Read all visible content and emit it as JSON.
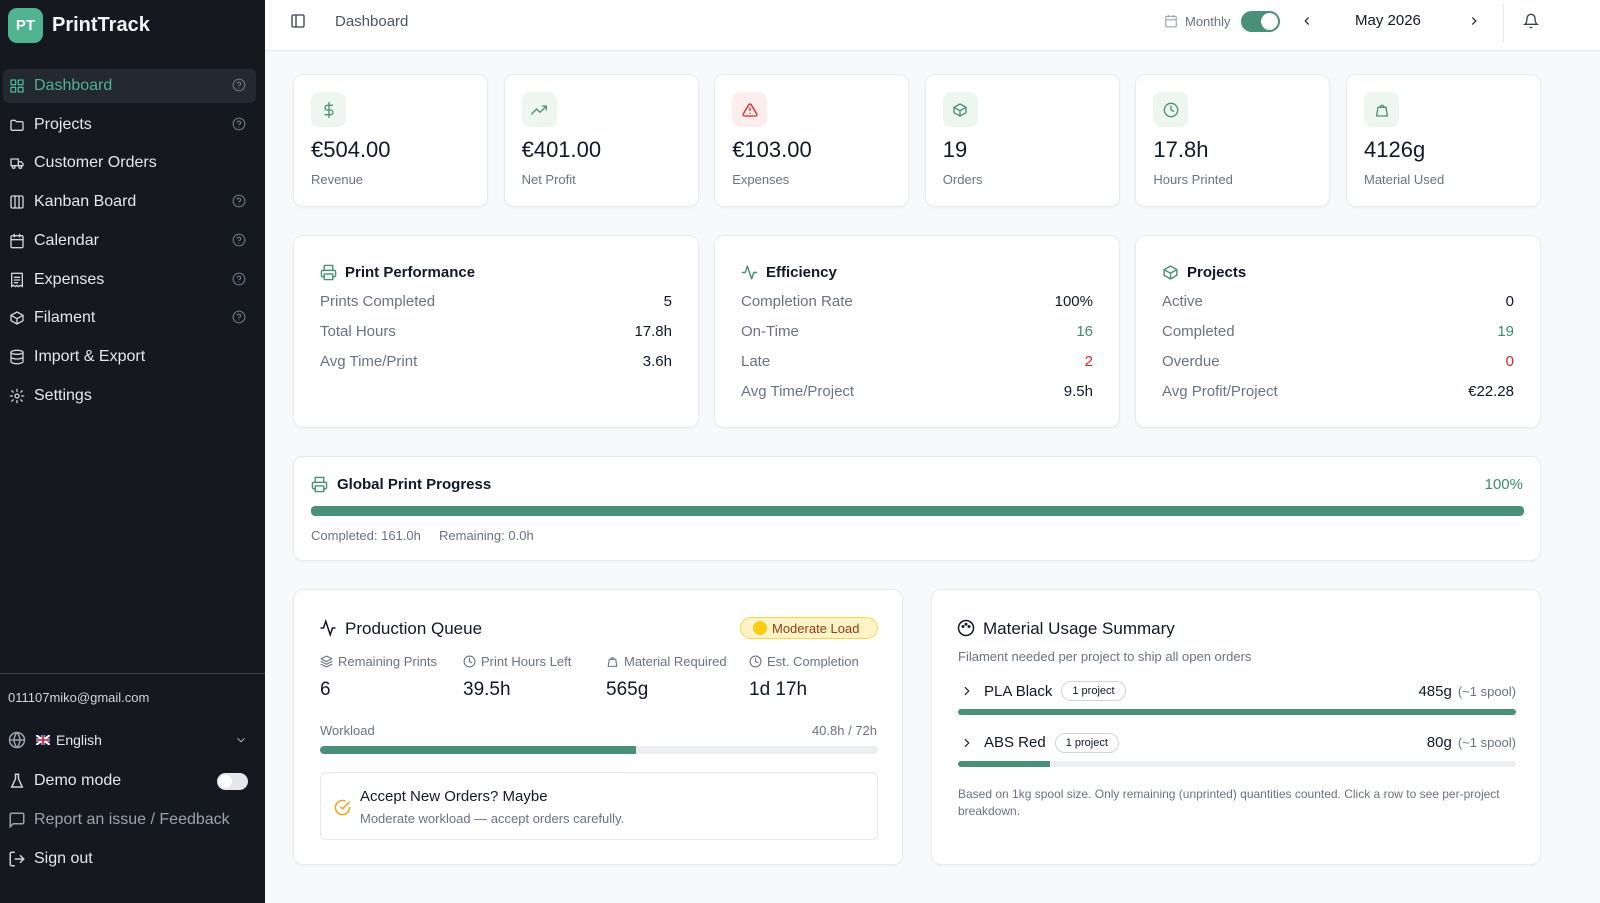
{
  "sidebar": {
    "logo": "PT",
    "app_name": "PrintTrack",
    "nav": [
      "Dashboard",
      "Projects",
      "Customer Orders",
      "Kanban Board",
      "Calendar",
      "Expenses",
      "Filament",
      "Import & Export",
      "Settings"
    ],
    "email": "011107miko@gmail.com",
    "language": "English",
    "demo_mode": "Demo mode",
    "report": "Report an issue / Feedback",
    "sign_out": "Sign out"
  },
  "header": {
    "page": "Dashboard",
    "period": "Monthly",
    "month": "May 2026"
  },
  "kpis": [
    {
      "value": "€504.00",
      "label": "Revenue"
    },
    {
      "value": "€401.00",
      "label": "Net Profit"
    },
    {
      "value": "€103.00",
      "label": "Expenses"
    },
    {
      "value": "19",
      "label": "Orders"
    },
    {
      "value": "17.8h",
      "label": "Hours Printed"
    },
    {
      "value": "4126g",
      "label": "Material Used"
    }
  ],
  "stats": [
    {
      "title": "Print Performance",
      "rows": [
        [
          "Prints Completed",
          "5"
        ],
        [
          "Total Hours",
          "17.8h"
        ],
        [
          "Avg Time/Print",
          "3.6h"
        ]
      ]
    },
    {
      "title": "Efficiency",
      "rows": [
        [
          "Completion Rate",
          "100%"
        ],
        [
          "On-Time",
          "16"
        ],
        [
          "Late",
          "2"
        ],
        [
          "Avg Time/Project",
          "9.5h"
        ]
      ]
    },
    {
      "title": "Projects",
      "rows": [
        [
          "Active",
          "0"
        ],
        [
          "Completed",
          "19"
        ],
        [
          "Overdue",
          "0"
        ],
        [
          "Avg Profit/Project",
          "€22.28"
        ]
      ]
    }
  ],
  "global_progress": {
    "title": "Global Print Progress",
    "percent": {
      "value": 100,
      "label": "100%"
    },
    "completed": "Completed: 161.0h",
    "remaining": "Remaining: 0.0h"
  },
  "production_queue": {
    "title": "Production Queue",
    "badge": "Moderate Load",
    "stats": [
      [
        "Remaining Prints",
        "6"
      ],
      [
        "Print Hours Left",
        "39.5h"
      ],
      [
        "Material Required",
        "565g"
      ],
      [
        "Est. Completion",
        "1d 17h"
      ]
    ],
    "workload": {
      "label": "Workload",
      "text": "40.8h / 72h",
      "used": 40.8,
      "capacity": 72
    },
    "advice_title": "Accept New Orders? Maybe",
    "advice_text": "Moderate workload — accept orders carefully."
  },
  "material_usage": {
    "title": "Material Usage Summary",
    "subtitle": "Filament needed per project to ship all open orders",
    "rows": [
      {
        "name": "PLA Black",
        "projects": "1 project",
        "grams": 485,
        "amount": "485g",
        "spools": "(~1 spool)"
      },
      {
        "name": "ABS Red",
        "projects": "1 project",
        "grams": 80,
        "amount": "80g",
        "spools": "(~1 spool)"
      }
    ],
    "note": "Based on 1kg spool size. Only remaining (unprinted) quantities counted. Click a row to see per-project breakdown."
  }
}
